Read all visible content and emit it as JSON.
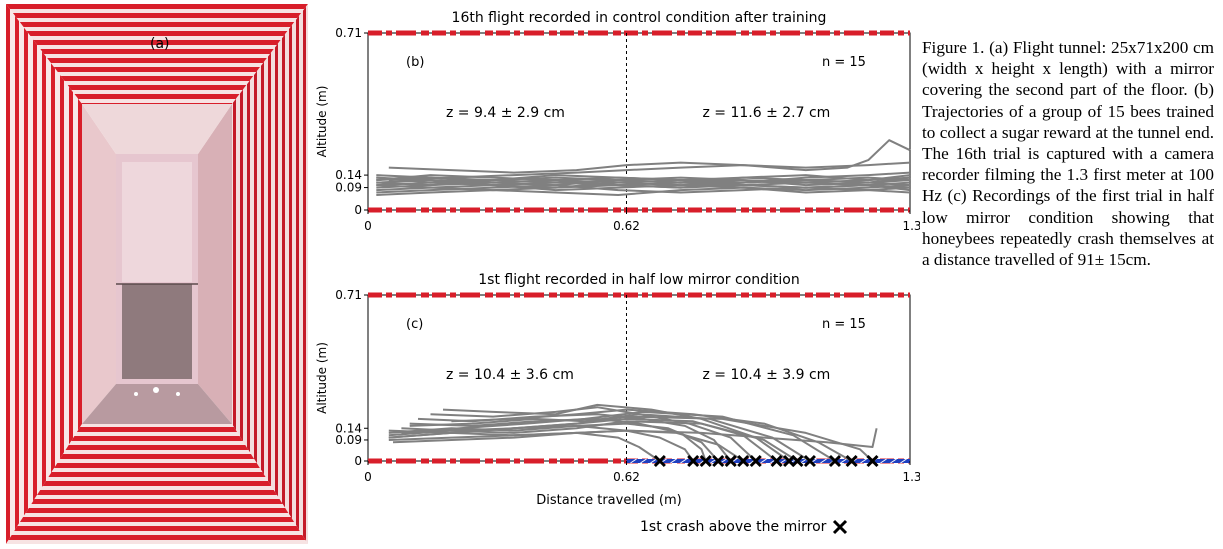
{
  "figure": {
    "photo_label": "(a)",
    "caption": "Figure 1. (a) Flight tunnel: 25x71x200 cm (width x height x length) with a mirror covering the second part of the floor. (b) Trajectories of a group of 15 bees trained to collect a sugar reward at the tunnel end. The 16th trial is captured with a camera recorder filming the 1.3 first meter at 100 Hz (c) Recordings of the first trial in half low mirror condition showing that honeybees repeatedly crash themselves at a distance travelled of 91± 15cm.",
    "crash_legend": "1st crash above the mirror",
    "colors": {
      "stripe_red": "#d81e2a",
      "trajectory_gray": "#808080",
      "mirror_blue": "#1f3fbf",
      "crash_mark": "#000000"
    }
  },
  "chart_data": [
    {
      "type": "line",
      "panel": "(b)",
      "title": "16th flight recorded in control condition after training",
      "xlabel": "",
      "ylabel": "Altitude (m)",
      "xlim": [
        0,
        1.3
      ],
      "ylim": [
        0,
        0.71
      ],
      "xticks": [
        "0",
        "0.62",
        "1.3"
      ],
      "yticks": [
        "0",
        "0.09",
        "0.14",
        "0.71"
      ],
      "n_label": "n = 15",
      "annotations": [
        "z = 9.4 ± 2.9 cm",
        "z = 11.6 ± 2.7 cm"
      ],
      "divider_x": 0.62,
      "mirror": false,
      "series": [
        {
          "x": [
            0.02,
            0.15,
            0.3,
            0.45,
            0.6,
            0.75,
            0.9,
            1.05,
            1.2,
            1.3
          ],
          "y": [
            0.12,
            0.13,
            0.11,
            0.12,
            0.13,
            0.12,
            0.11,
            0.12,
            0.13,
            0.12
          ]
        },
        {
          "x": [
            0.02,
            0.15,
            0.3,
            0.45,
            0.6,
            0.75,
            0.9,
            1.05,
            1.2,
            1.3
          ],
          "y": [
            0.1,
            0.11,
            0.1,
            0.09,
            0.1,
            0.11,
            0.1,
            0.09,
            0.1,
            0.11
          ]
        },
        {
          "x": [
            0.02,
            0.15,
            0.3,
            0.45,
            0.6,
            0.75,
            0.9,
            1.05,
            1.2,
            1.3
          ],
          "y": [
            0.14,
            0.13,
            0.12,
            0.14,
            0.13,
            0.12,
            0.13,
            0.14,
            0.12,
            0.13
          ]
        },
        {
          "x": [
            0.02,
            0.15,
            0.3,
            0.45,
            0.6,
            0.75,
            0.9,
            1.05,
            1.2,
            1.3
          ],
          "y": [
            0.08,
            0.09,
            0.1,
            0.08,
            0.09,
            0.1,
            0.09,
            0.08,
            0.09,
            0.1
          ]
        },
        {
          "x": [
            0.02,
            0.15,
            0.3,
            0.45,
            0.6,
            0.75,
            0.9,
            1.05,
            1.2,
            1.3
          ],
          "y": [
            0.11,
            0.1,
            0.12,
            0.11,
            0.1,
            0.09,
            0.11,
            0.12,
            0.11,
            0.1
          ]
        },
        {
          "x": [
            0.02,
            0.15,
            0.3,
            0.45,
            0.6,
            0.75,
            0.9,
            1.05,
            1.2,
            1.3
          ],
          "y": [
            0.13,
            0.12,
            0.11,
            0.1,
            0.12,
            0.13,
            0.12,
            0.11,
            0.12,
            0.14
          ]
        },
        {
          "x": [
            0.02,
            0.15,
            0.3,
            0.45,
            0.6,
            0.75,
            0.9,
            1.05,
            1.2,
            1.3
          ],
          "y": [
            0.07,
            0.08,
            0.09,
            0.1,
            0.08,
            0.07,
            0.08,
            0.09,
            0.08,
            0.07
          ]
        },
        {
          "x": [
            0.02,
            0.15,
            0.3,
            0.45,
            0.6,
            0.75,
            0.9,
            1.05,
            1.2,
            1.3
          ],
          "y": [
            0.12,
            0.14,
            0.13,
            0.12,
            0.11,
            0.1,
            0.11,
            0.13,
            0.14,
            0.15
          ]
        },
        {
          "x": [
            0.02,
            0.15,
            0.3,
            0.45,
            0.6,
            0.75,
            0.9,
            1.05,
            1.2,
            1.3
          ],
          "y": [
            0.1,
            0.09,
            0.08,
            0.09,
            0.11,
            0.12,
            0.1,
            0.09,
            0.1,
            0.09
          ]
        },
        {
          "x": [
            0.02,
            0.15,
            0.3,
            0.45,
            0.6,
            0.75,
            0.9,
            1.05,
            1.2,
            1.3
          ],
          "y": [
            0.09,
            0.1,
            0.11,
            0.12,
            0.1,
            0.09,
            0.1,
            0.11,
            0.1,
            0.08
          ]
        },
        {
          "x": [
            0.02,
            0.15,
            0.3,
            0.45,
            0.6,
            0.75,
            0.9,
            1.05,
            1.2,
            1.3
          ],
          "y": [
            0.11,
            0.12,
            0.1,
            0.11,
            0.12,
            0.11,
            0.12,
            0.1,
            0.11,
            0.12
          ]
        },
        {
          "x": [
            0.02,
            0.15,
            0.3,
            0.45,
            0.6,
            0.75,
            0.9,
            1.05,
            1.2,
            1.3
          ],
          "y": [
            0.06,
            0.07,
            0.08,
            0.07,
            0.06,
            0.08,
            0.09,
            0.07,
            0.08,
            0.09
          ]
        },
        {
          "x": [
            0.05,
            0.2,
            0.35,
            0.5,
            0.62,
            0.75,
            0.9,
            1.05,
            1.2,
            1.3
          ],
          "y": [
            0.17,
            0.16,
            0.15,
            0.16,
            0.18,
            0.19,
            0.18,
            0.17,
            0.18,
            0.19
          ]
        },
        {
          "x": [
            0.05,
            0.2,
            0.35,
            0.5,
            0.62,
            0.75,
            0.9,
            1.05,
            1.15,
            1.2,
            1.25,
            1.3
          ],
          "y": [
            0.12,
            0.13,
            0.14,
            0.15,
            0.16,
            0.17,
            0.18,
            0.16,
            0.17,
            0.2,
            0.28,
            0.24
          ]
        },
        {
          "x": [
            0.02,
            0.15,
            0.3,
            0.45,
            0.6,
            0.75,
            0.9,
            1.05,
            1.2,
            1.3
          ],
          "y": [
            0.13,
            0.11,
            0.12,
            0.13,
            0.12,
            0.11,
            0.13,
            0.12,
            0.11,
            0.13
          ]
        }
      ]
    },
    {
      "type": "line",
      "panel": "(c)",
      "title": "1st flight recorded in half low mirror condition",
      "xlabel": "Distance travelled (m)",
      "ylabel": "Altitude (m)",
      "xlim": [
        0,
        1.3
      ],
      "ylim": [
        0,
        0.71
      ],
      "xticks": [
        "0",
        "0.62",
        "1.3"
      ],
      "yticks": [
        "0",
        "0.09",
        "0.14",
        "0.71"
      ],
      "n_label": "n = 15",
      "annotations": [
        "z = 10.4 ± 3.6 cm",
        "z = 10.4 ± 3.9 cm"
      ],
      "divider_x": 0.62,
      "mirror": true,
      "crash_x": [
        0.7,
        0.78,
        0.81,
        0.84,
        0.87,
        0.9,
        0.93,
        0.98,
        1.01,
        1.03,
        1.06,
        1.12,
        1.16,
        1.21
      ],
      "series": [
        {
          "x": [
            0.05,
            0.2,
            0.35,
            0.5,
            0.6,
            0.65,
            0.7
          ],
          "y": [
            0.1,
            0.12,
            0.11,
            0.12,
            0.1,
            0.06,
            0.0
          ]
        },
        {
          "x": [
            0.08,
            0.2,
            0.35,
            0.5,
            0.62,
            0.7,
            0.76,
            0.78
          ],
          "y": [
            0.14,
            0.13,
            0.14,
            0.15,
            0.13,
            0.1,
            0.05,
            0.0
          ]
        },
        {
          "x": [
            0.1,
            0.25,
            0.4,
            0.55,
            0.65,
            0.75,
            0.8,
            0.81
          ],
          "y": [
            0.16,
            0.15,
            0.17,
            0.18,
            0.16,
            0.12,
            0.05,
            0.0
          ]
        },
        {
          "x": [
            0.05,
            0.2,
            0.35,
            0.5,
            0.62,
            0.72,
            0.8,
            0.84
          ],
          "y": [
            0.12,
            0.14,
            0.13,
            0.15,
            0.16,
            0.14,
            0.08,
            0.0
          ]
        },
        {
          "x": [
            0.12,
            0.25,
            0.4,
            0.55,
            0.66,
            0.76,
            0.83,
            0.87
          ],
          "y": [
            0.18,
            0.17,
            0.19,
            0.2,
            0.18,
            0.15,
            0.09,
            0.0
          ]
        },
        {
          "x": [
            0.05,
            0.2,
            0.35,
            0.5,
            0.62,
            0.74,
            0.84,
            0.9
          ],
          "y": [
            0.09,
            0.1,
            0.11,
            0.12,
            0.13,
            0.12,
            0.07,
            0.0
          ]
        },
        {
          "x": [
            0.15,
            0.3,
            0.45,
            0.55,
            0.65,
            0.77,
            0.87,
            0.93
          ],
          "y": [
            0.2,
            0.19,
            0.21,
            0.23,
            0.2,
            0.16,
            0.1,
            0.0
          ]
        },
        {
          "x": [
            0.05,
            0.2,
            0.35,
            0.5,
            0.62,
            0.78,
            0.9,
            0.98
          ],
          "y": [
            0.13,
            0.12,
            0.14,
            0.16,
            0.18,
            0.17,
            0.11,
            0.0
          ]
        },
        {
          "x": [
            0.18,
            0.3,
            0.45,
            0.55,
            0.68,
            0.8,
            0.93,
            1.01
          ],
          "y": [
            0.22,
            0.21,
            0.2,
            0.24,
            0.22,
            0.18,
            0.1,
            0.0
          ]
        },
        {
          "x": [
            0.05,
            0.2,
            0.35,
            0.5,
            0.62,
            0.8,
            0.95,
            1.03
          ],
          "y": [
            0.11,
            0.13,
            0.12,
            0.14,
            0.17,
            0.16,
            0.09,
            0.0
          ]
        },
        {
          "x": [
            0.1,
            0.25,
            0.4,
            0.52,
            0.65,
            0.82,
            0.97,
            1.06
          ],
          "y": [
            0.15,
            0.16,
            0.18,
            0.17,
            0.2,
            0.18,
            0.1,
            0.0
          ]
        },
        {
          "x": [
            0.08,
            0.22,
            0.38,
            0.52,
            0.66,
            0.85,
            1.02,
            1.12
          ],
          "y": [
            0.12,
            0.14,
            0.16,
            0.18,
            0.21,
            0.19,
            0.11,
            0.0
          ]
        },
        {
          "x": [
            0.2,
            0.35,
            0.5,
            0.62,
            0.78,
            0.95,
            1.08,
            1.16
          ],
          "y": [
            0.17,
            0.18,
            0.2,
            0.22,
            0.2,
            0.16,
            0.08,
            0.0
          ]
        },
        {
          "x": [
            0.05,
            0.2,
            0.35,
            0.5,
            0.62,
            0.85,
            1.05,
            1.18,
            1.21
          ],
          "y": [
            0.1,
            0.12,
            0.14,
            0.16,
            0.19,
            0.18,
            0.12,
            0.05,
            0.0
          ]
        },
        {
          "x": [
            0.06,
            0.2,
            0.35,
            0.5,
            0.62,
            0.8,
            0.95,
            1.1,
            1.21,
            1.22
          ],
          "y": [
            0.08,
            0.09,
            0.1,
            0.12,
            0.13,
            0.12,
            0.1,
            0.08,
            0.06,
            0.14
          ]
        }
      ]
    }
  ]
}
